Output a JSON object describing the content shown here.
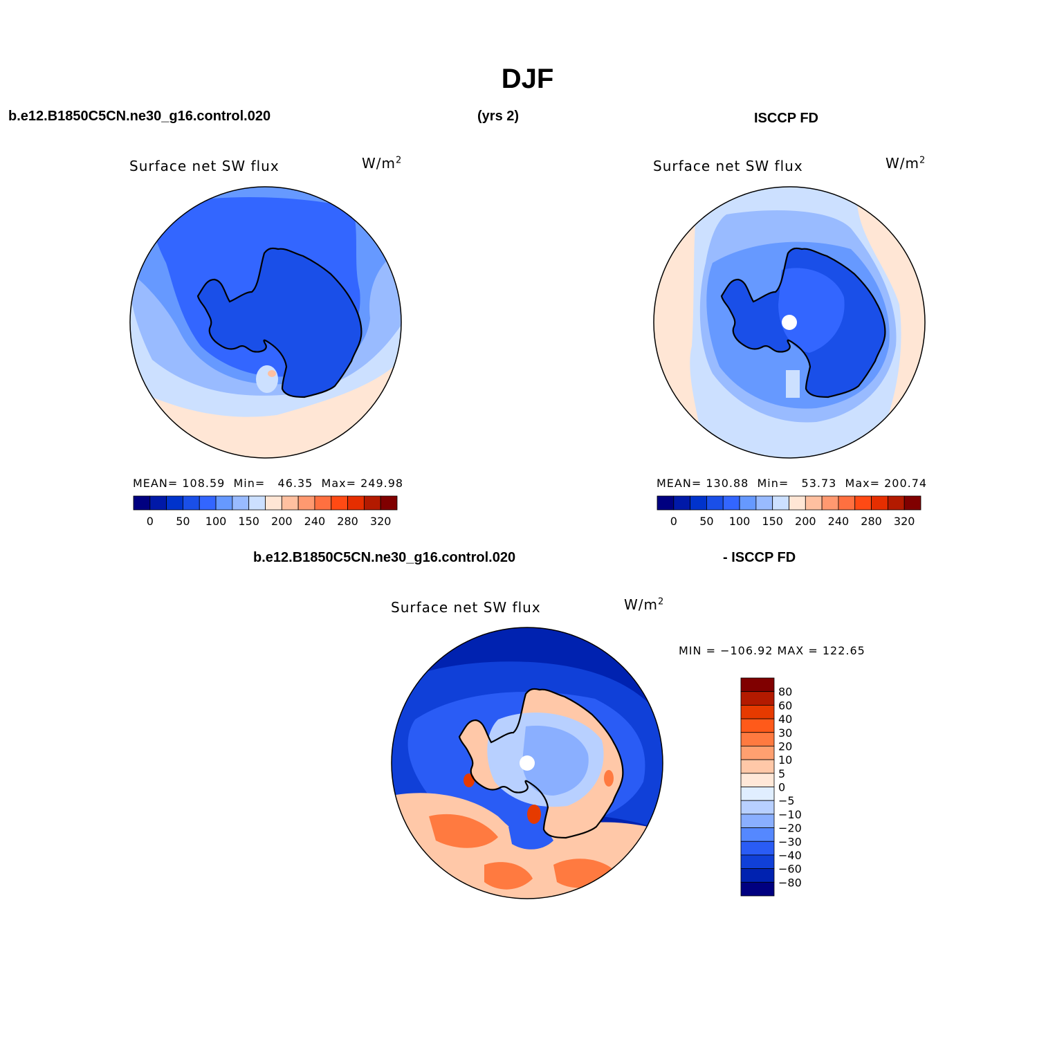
{
  "figure": {
    "title": "DJF",
    "case_name_top": "b.e12.B1850C5CN.ne30_g16.control.020",
    "years": "(yrs 2)",
    "obs_name_top": "ISCCP FD",
    "case_name_diff": "b.e12.B1850C5CN.ne30_g16.control.020",
    "obs_name_diff": "- ISCCP FD"
  },
  "panels": [
    {
      "id": "model",
      "variable": "Surface net SW flux",
      "units": "W/m",
      "units_sup": "2",
      "stats": {
        "mean_label": "MEAN=",
        "mean": "108.59",
        "min_label": "Min=",
        "min": "46.35",
        "max_label": "Max=",
        "max": "249.98"
      }
    },
    {
      "id": "obs",
      "variable": "Surface net SW flux",
      "units": "W/m",
      "units_sup": "2",
      "stats": {
        "mean_label": "MEAN=",
        "mean": "130.88",
        "min_label": "Min=",
        "min": "53.73",
        "max_label": "Max=",
        "max": "200.74"
      }
    },
    {
      "id": "diff",
      "variable": "Surface net SW flux",
      "units": "W/m",
      "units_sup": "2",
      "minmax": "MIN = −106.92 MAX = 122.65"
    }
  ],
  "colorbar_main": {
    "colors": [
      "#000080",
      "#0019a8",
      "#0033cc",
      "#1a4fe8",
      "#3366ff",
      "#6699ff",
      "#99bbff",
      "#cce0ff",
      "#ffe6d5",
      "#ffc0a0",
      "#ff9970",
      "#ff7040",
      "#ff4a14",
      "#e62e00",
      "#b31a00",
      "#800000"
    ],
    "labels": [
      "0",
      "50",
      "100",
      "150",
      "200",
      "240",
      "280",
      "320"
    ]
  },
  "colorbar_diff": {
    "colors": [
      "#800000",
      "#b31a00",
      "#e63a00",
      "#ff5a1a",
      "#ff7a40",
      "#ffa070",
      "#ffc8a8",
      "#ffe8d8",
      "#e0eeff",
      "#b8d0ff",
      "#8aafff",
      "#5588ff",
      "#2a5cf5",
      "#1040d8",
      "#0022b0",
      "#000080"
    ],
    "labels": [
      "80",
      "60",
      "40",
      "30",
      "20",
      "10",
      "5",
      "0",
      "−5",
      "−10",
      "−20",
      "−30",
      "−40",
      "−60",
      "−80"
    ]
  },
  "map_colors": {
    "model": {
      "outer": "#ffe6d5",
      "ring1": "#cce0ff",
      "ring2": "#99bbff",
      "ring3": "#6699ff",
      "ring4": "#3366ff",
      "inner": "#1a4fe8",
      "hot": "#ffc0a0"
    },
    "obs": {
      "outer": "#ffe6d5",
      "ring1": "#cce0ff",
      "ring2": "#99bbff",
      "ring3": "#6699ff",
      "ring4": "#3366ff",
      "inner": "#1a4fe8",
      "plateau": "#3366ff"
    },
    "diff": {
      "outer": "#0022b0",
      "ring1": "#1040d8",
      "ring2": "#2a5cf5",
      "warm1": "#ffc8a8",
      "warm2": "#ff7a40",
      "hot": "#e63a00",
      "inner": "#8aafff",
      "inner2": "#b8d0ff"
    }
  }
}
